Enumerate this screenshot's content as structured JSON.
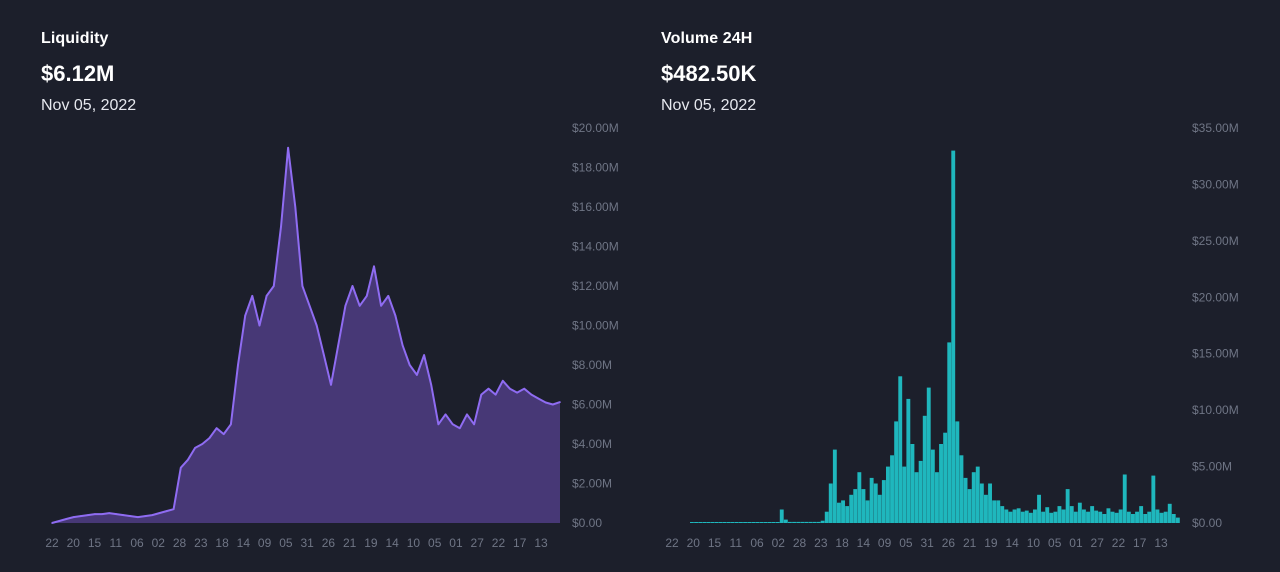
{
  "liquidity": {
    "label": "Liquidity",
    "value": "$6.12M",
    "date": "Nov 05, 2022",
    "color": "#8f6cf2",
    "fill_color": "#4a3a7a"
  },
  "volume": {
    "label": "Volume 24H",
    "value": "$482.50K",
    "date": "Nov 05, 2022",
    "color": "#2ed3d3",
    "fill_color": "#1fb7bd"
  },
  "chart_data": [
    {
      "type": "area",
      "title": "Liquidity",
      "ylim": [
        0,
        20
      ],
      "y_unit": "M",
      "y_ticks": [
        "$0.00",
        "$2.00M",
        "$4.00M",
        "$6.00M",
        "$8.00M",
        "$10.00M",
        "$12.00M",
        "$14.00M",
        "$16.00M",
        "$18.00M",
        "$20.00M"
      ],
      "x_ticks": [
        "22",
        "20",
        "15",
        "11",
        "06",
        "02",
        "28",
        "23",
        "18",
        "14",
        "09",
        "05",
        "31",
        "26",
        "21",
        "19",
        "14",
        "10",
        "05",
        "01",
        "27",
        "22",
        "17",
        "13"
      ],
      "values": [
        0.0,
        0.1,
        0.2,
        0.3,
        0.35,
        0.4,
        0.45,
        0.45,
        0.5,
        0.45,
        0.4,
        0.35,
        0.3,
        0.35,
        0.4,
        0.5,
        0.6,
        0.7,
        2.8,
        3.2,
        3.8,
        4.0,
        4.3,
        4.8,
        4.5,
        5.0,
        8.0,
        10.5,
        11.5,
        10.0,
        11.5,
        12.0,
        15.0,
        19.0,
        16.0,
        12.0,
        11.0,
        10.0,
        8.5,
        7.0,
        9.0,
        11.0,
        12.0,
        11.0,
        11.5,
        13.0,
        11.0,
        11.5,
        10.5,
        9.0,
        8.0,
        7.5,
        8.5,
        7.0,
        5.0,
        5.5,
        5.0,
        4.8,
        5.5,
        5.0,
        6.5,
        6.8,
        6.5,
        7.2,
        6.8,
        6.6,
        6.8,
        6.5,
        6.3,
        6.1,
        6.0,
        6.12
      ]
    },
    {
      "type": "bar",
      "title": "Volume 24H",
      "ylim": [
        0,
        35
      ],
      "y_unit": "M",
      "y_ticks": [
        "$0.00",
        "$5.00M",
        "$10.00M",
        "$15.00M",
        "$20.00M",
        "$25.00M",
        "$30.00M",
        "$35.00M"
      ],
      "x_ticks": [
        "22",
        "20",
        "15",
        "11",
        "06",
        "02",
        "28",
        "23",
        "18",
        "14",
        "09",
        "05",
        "31",
        "26",
        "21",
        "19",
        "14",
        "10",
        "05",
        "01",
        "27",
        "22",
        "17",
        "13"
      ],
      "values": [
        0.05,
        0.05,
        0.05,
        0.05,
        0.05,
        0.05,
        0.05,
        0.05,
        0.05,
        0.05,
        0.05,
        0.05,
        0.05,
        0.05,
        0.05,
        0.05,
        0.05,
        0.05,
        0.05,
        0.05,
        0.05,
        0.05,
        1.2,
        0.3,
        0.1,
        0.1,
        0.1,
        0.1,
        0.1,
        0.1,
        0.1,
        0.1,
        0.2,
        1.0,
        3.5,
        6.5,
        1.8,
        2.0,
        1.5,
        2.5,
        3.0,
        4.5,
        3.0,
        2.0,
        4.0,
        3.5,
        2.5,
        3.8,
        5.0,
        6.0,
        9.0,
        13.0,
        5.0,
        11.0,
        7.0,
        4.5,
        5.5,
        9.5,
        12.0,
        6.5,
        4.5,
        7.0,
        8.0,
        16.0,
        33.0,
        9.0,
        6.0,
        4.0,
        3.0,
        4.5,
        5.0,
        3.5,
        2.5,
        3.5,
        2.0,
        2.0,
        1.5,
        1.2,
        1.0,
        1.2,
        1.3,
        1.0,
        1.1,
        0.9,
        1.2,
        2.5,
        1.0,
        1.4,
        0.9,
        1.0,
        1.5,
        1.2,
        3.0,
        1.5,
        1.0,
        1.8,
        1.2,
        1.0,
        1.5,
        1.1,
        1.0,
        0.8,
        1.3,
        1.0,
        0.9,
        1.2,
        4.3,
        1.0,
        0.8,
        1.0,
        1.5,
        0.8,
        1.0,
        4.2,
        1.2,
        0.9,
        1.0,
        1.7,
        0.8,
        0.48
      ]
    }
  ]
}
